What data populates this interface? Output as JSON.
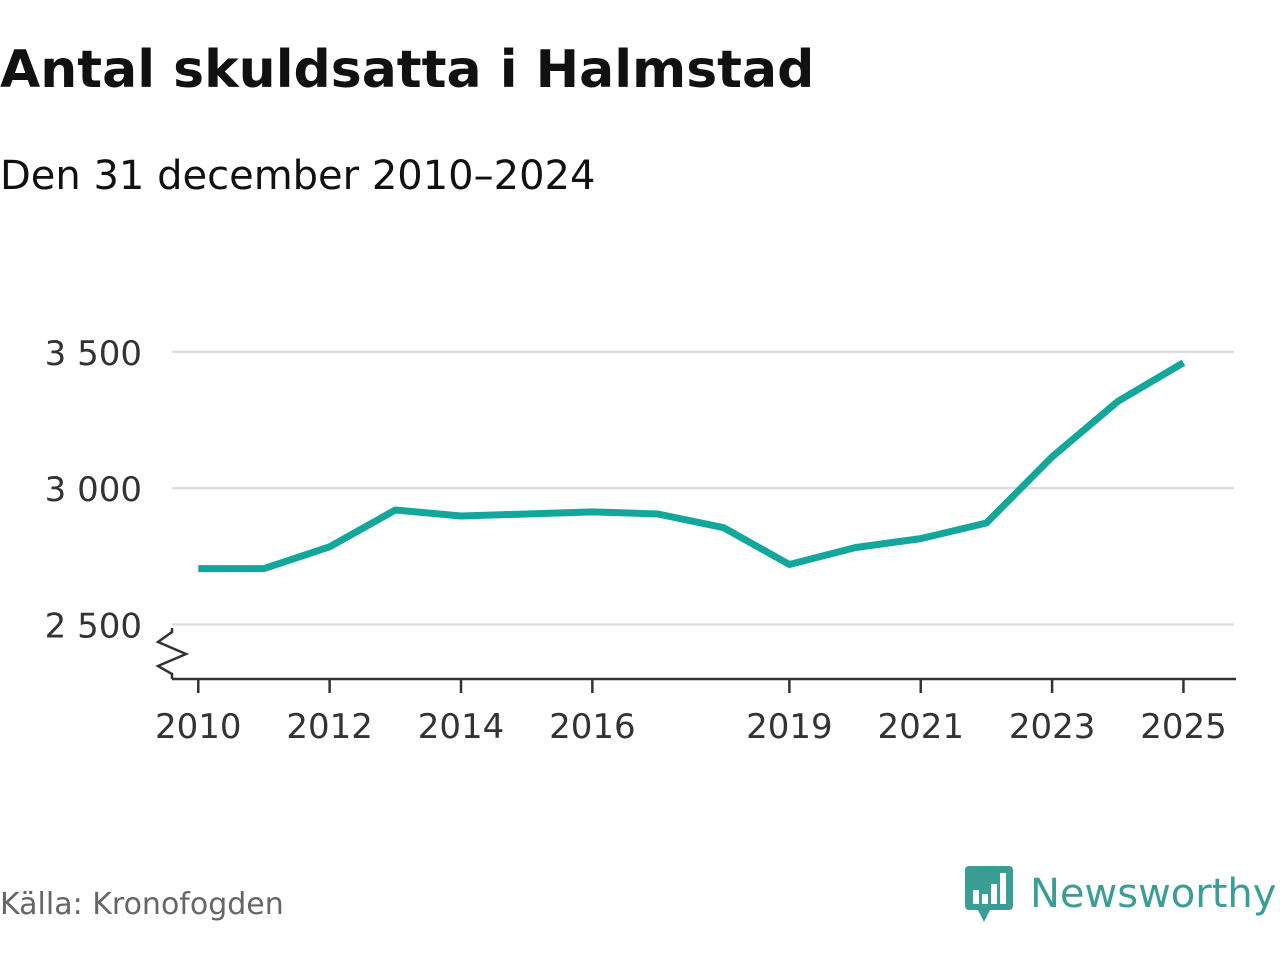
{
  "header": {
    "title": "Antal skuldsatta i Halmstad",
    "subtitle": "Den 31 december 2010–2024"
  },
  "footer": {
    "source": "Källa: Kronofogden",
    "brand": "Newsworthy"
  },
  "colors": {
    "line": "#13a69b",
    "grid": "#dddddd",
    "axis": "#333333",
    "text": "#333333",
    "brand": "#3a9e95"
  },
  "chart_data": {
    "type": "line",
    "title": "Antal skuldsatta i Halmstad",
    "subtitle": "Den 31 december 2010–2024",
    "xlabel": "",
    "ylabel": "",
    "xlim": [
      2009.6,
      2025.8
    ],
    "ylim": [
      2300,
      3580
    ],
    "yticks": [
      2500,
      3000,
      3500
    ],
    "ytick_labels": [
      "2 500",
      "3 000",
      "3 500"
    ],
    "xticks": [
      2010,
      2012,
      2014,
      2016,
      2019,
      2021,
      2023,
      2025
    ],
    "xtick_labels": [
      "2010",
      "2012",
      "2014",
      "2016",
      "2019",
      "2021",
      "2023",
      "2025"
    ],
    "grid": true,
    "axis_break": true,
    "series": [
      {
        "name": "Antal skuldsatta",
        "x": [
          2010,
          2011,
          2012,
          2013,
          2014,
          2015,
          2016,
          2017,
          2018,
          2019,
          2020,
          2021,
          2022,
          2023,
          2024,
          2025
        ],
        "values": [
          2705,
          2705,
          2785,
          2920,
          2898,
          2905,
          2913,
          2905,
          2855,
          2720,
          2782,
          2815,
          2872,
          3115,
          3318,
          3460
        ]
      }
    ]
  }
}
